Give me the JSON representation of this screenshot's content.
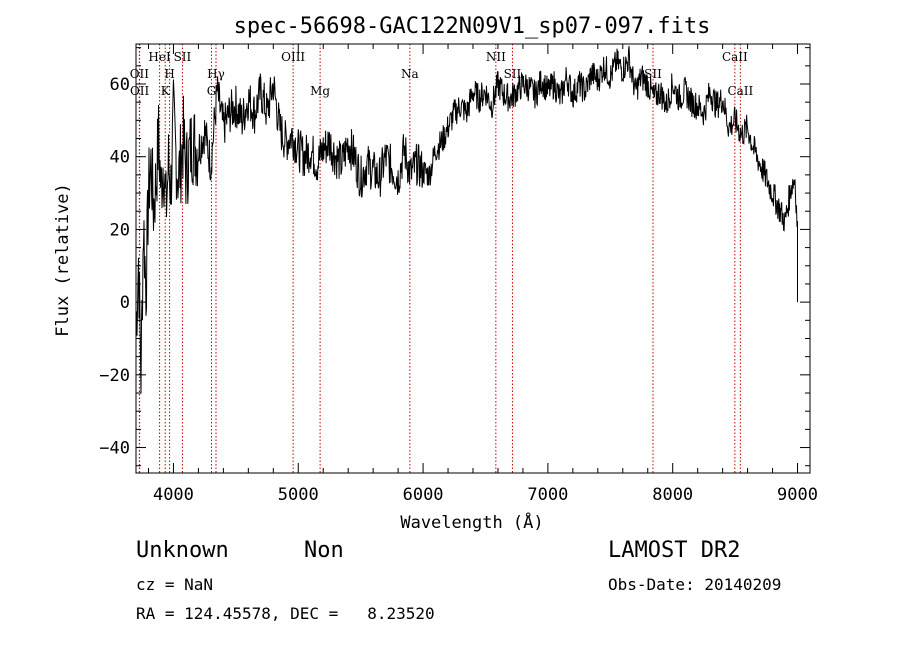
{
  "title": "spec-56698-GAC122N09V1_sp07-097.fits",
  "info": {
    "class_label": "Unknown",
    "subclass_label": "Non",
    "survey": "LAMOST DR2",
    "cz": "cz = NaN",
    "obs_date": "Obs-Date: 20140209",
    "radec": "RA = 124.45578, DEC =   8.23520"
  },
  "chart_data": {
    "type": "line",
    "title": "spec-56698-GAC122N09V1_sp07-097.fits",
    "xlabel": "Wavelength (Å)",
    "ylabel": "Flux (relative)",
    "xlim": [
      3700,
      9100
    ],
    "ylim": [
      -47,
      71
    ],
    "xticks": [
      4000,
      5000,
      6000,
      7000,
      8000,
      9000
    ],
    "yticks": [
      -40,
      -20,
      0,
      20,
      40,
      60
    ],
    "grid": false,
    "line_color": "#000000",
    "marker_color": "#cc0000",
    "lines": [
      {
        "label": "OII",
        "wave": 3727,
        "row": 1
      },
      {
        "label": "OII",
        "wave": 3729,
        "row": 2
      },
      {
        "label": "HeI",
        "wave": 3889,
        "row": 0
      },
      {
        "label": "H",
        "wave": 3969,
        "row": 1
      },
      {
        "label": "K",
        "wave": 3934,
        "row": 2
      },
      {
        "label": "SII",
        "wave": 4072,
        "row": 0
      },
      {
        "label": "Hγ",
        "wave": 4341,
        "row": 1
      },
      {
        "label": "G",
        "wave": 4305,
        "row": 2
      },
      {
        "label": "OIII",
        "wave": 4959,
        "row": 0
      },
      {
        "label": "Mg",
        "wave": 5175,
        "row": 2
      },
      {
        "label": "Na",
        "wave": 5894,
        "row": 1
      },
      {
        "label": "NII",
        "wave": 6583,
        "row": 0
      },
      {
        "label": "SII",
        "wave": 6716,
        "row": 1
      },
      {
        "label": "SII",
        "wave": 7842,
        "row": 1
      },
      {
        "label": "CaII",
        "wave": 8498,
        "row": 0
      },
      {
        "label": "CaII",
        "wave": 8542,
        "row": 2
      }
    ],
    "series": [
      {
        "x": [
          3700,
          3720,
          3740,
          3760,
          3780,
          3800,
          3820,
          3840,
          3860,
          3880,
          3900,
          3920,
          3940,
          3960,
          3980,
          4000,
          4020,
          4040,
          4060,
          4080,
          4100,
          4150,
          4200,
          4250,
          4300,
          4350,
          4400,
          4450,
          4500,
          4550,
          4600,
          4650,
          4700,
          4750,
          4800,
          4850,
          4900,
          4950,
          5000,
          5050,
          5100,
          5150,
          5200,
          5250,
          5300,
          5350,
          5400,
          5450,
          5500,
          5550,
          5600,
          5650,
          5700,
          5750,
          5800,
          5850,
          5900,
          5950,
          6000,
          6050,
          6100,
          6150,
          6200,
          6250,
          6300,
          6350,
          6400,
          6450,
          6500,
          6550,
          6600,
          6650,
          6700,
          6750,
          6800,
          6850,
          6900,
          6950,
          7000,
          7050,
          7100,
          7150,
          7200,
          7250,
          7300,
          7350,
          7400,
          7450,
          7500,
          7550,
          7600,
          7650,
          7700,
          7750,
          7800,
          7850,
          7900,
          7950,
          8000,
          8050,
          8100,
          8150,
          8200,
          8250,
          8300,
          8350,
          8400,
          8450,
          8500,
          8550,
          8600,
          8650,
          8700,
          8750,
          8800,
          8850,
          8900,
          8950,
          8980,
          9000,
          9000
        ],
        "y": [
          -8,
          12,
          -20,
          22,
          4,
          30,
          38,
          26,
          33,
          45,
          31,
          40,
          25,
          38,
          32,
          50,
          41,
          34,
          39,
          45,
          36,
          44,
          42,
          47,
          38,
          58,
          48,
          52,
          54,
          50,
          56,
          52,
          58,
          52,
          60,
          48,
          44,
          46,
          42,
          40,
          42,
          38,
          42,
          44,
          40,
          38,
          44,
          40,
          34,
          38,
          36,
          34,
          40,
          37,
          34,
          42,
          35,
          38,
          36,
          35,
          42,
          44,
          48,
          52,
          54,
          52,
          58,
          56,
          58,
          54,
          60,
          57,
          56,
          58,
          60,
          59,
          57,
          61,
          58,
          60,
          56,
          62,
          57,
          60,
          58,
          63,
          61,
          65,
          62,
          66,
          64,
          67,
          58,
          62,
          60,
          56,
          58,
          54,
          60,
          56,
          58,
          55,
          54,
          52,
          58,
          54,
          56,
          48,
          50,
          46,
          48,
          42,
          38,
          34,
          30,
          26,
          22,
          32,
          34,
          20,
          0
        ]
      }
    ]
  }
}
